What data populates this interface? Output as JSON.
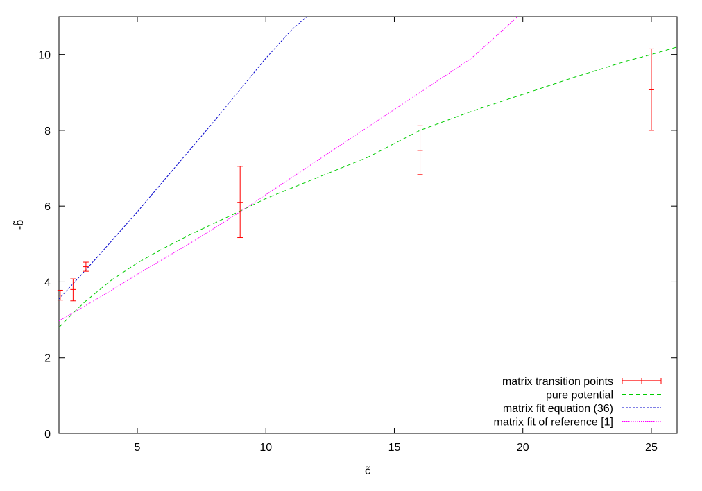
{
  "chart_data": {
    "type": "line",
    "xlabel": "c̃",
    "ylabel": "-b̃",
    "xlim": [
      1.95,
      26
    ],
    "ylim": [
      0,
      11
    ],
    "xticks": [
      5,
      10,
      15,
      20,
      25
    ],
    "yticks": [
      0,
      2,
      4,
      6,
      8,
      10
    ],
    "legend_position": "bottom-right",
    "grid": false,
    "points": {
      "name": "matrix transition points",
      "color": "#ff0000",
      "x": [
        2,
        2.5,
        3,
        9,
        16,
        25
      ],
      "y": [
        3.65,
        3.8,
        4.4,
        6.1,
        7.47,
        9.07
      ],
      "y_low": [
        3.52,
        3.5,
        4.28,
        5.17,
        6.83,
        8.0
      ],
      "y_high": [
        3.78,
        4.08,
        4.52,
        7.05,
        8.12,
        10.15
      ]
    },
    "series": [
      {
        "name": "pure potential",
        "color": "#00cc00",
        "dash": "6,4",
        "x": [
          1.95,
          2.5,
          3,
          4,
          5,
          6,
          7,
          8,
          9,
          10,
          12,
          14,
          16,
          18,
          20,
          22,
          24,
          25,
          26
        ],
        "y": [
          2.8,
          3.18,
          3.5,
          4.05,
          4.5,
          4.88,
          5.23,
          5.55,
          5.87,
          6.2,
          6.75,
          7.3,
          8.0,
          8.5,
          8.95,
          9.4,
          9.82,
          10.0,
          10.2
        ]
      },
      {
        "name": "matrix fit equation (36)",
        "color": "#0000cc",
        "dash": "3,2",
        "x": [
          1.95,
          3,
          4,
          5,
          6,
          7,
          8,
          9,
          10,
          11,
          11.6
        ],
        "y": [
          3.55,
          4.32,
          5.08,
          5.85,
          6.65,
          7.45,
          8.25,
          9.08,
          9.9,
          10.65,
          11.0
        ]
      },
      {
        "name": "matrix fit of reference [1]",
        "color": "#ff00ff",
        "dash": "1.5,1.5",
        "x": [
          1.95,
          3,
          4,
          5,
          6,
          7,
          8,
          9,
          10,
          12,
          14,
          16,
          18,
          19.8
        ],
        "y": [
          2.97,
          3.38,
          3.78,
          4.2,
          4.6,
          5.0,
          5.42,
          5.85,
          6.3,
          7.2,
          8.1,
          9.0,
          9.9,
          11.0
        ]
      }
    ]
  }
}
